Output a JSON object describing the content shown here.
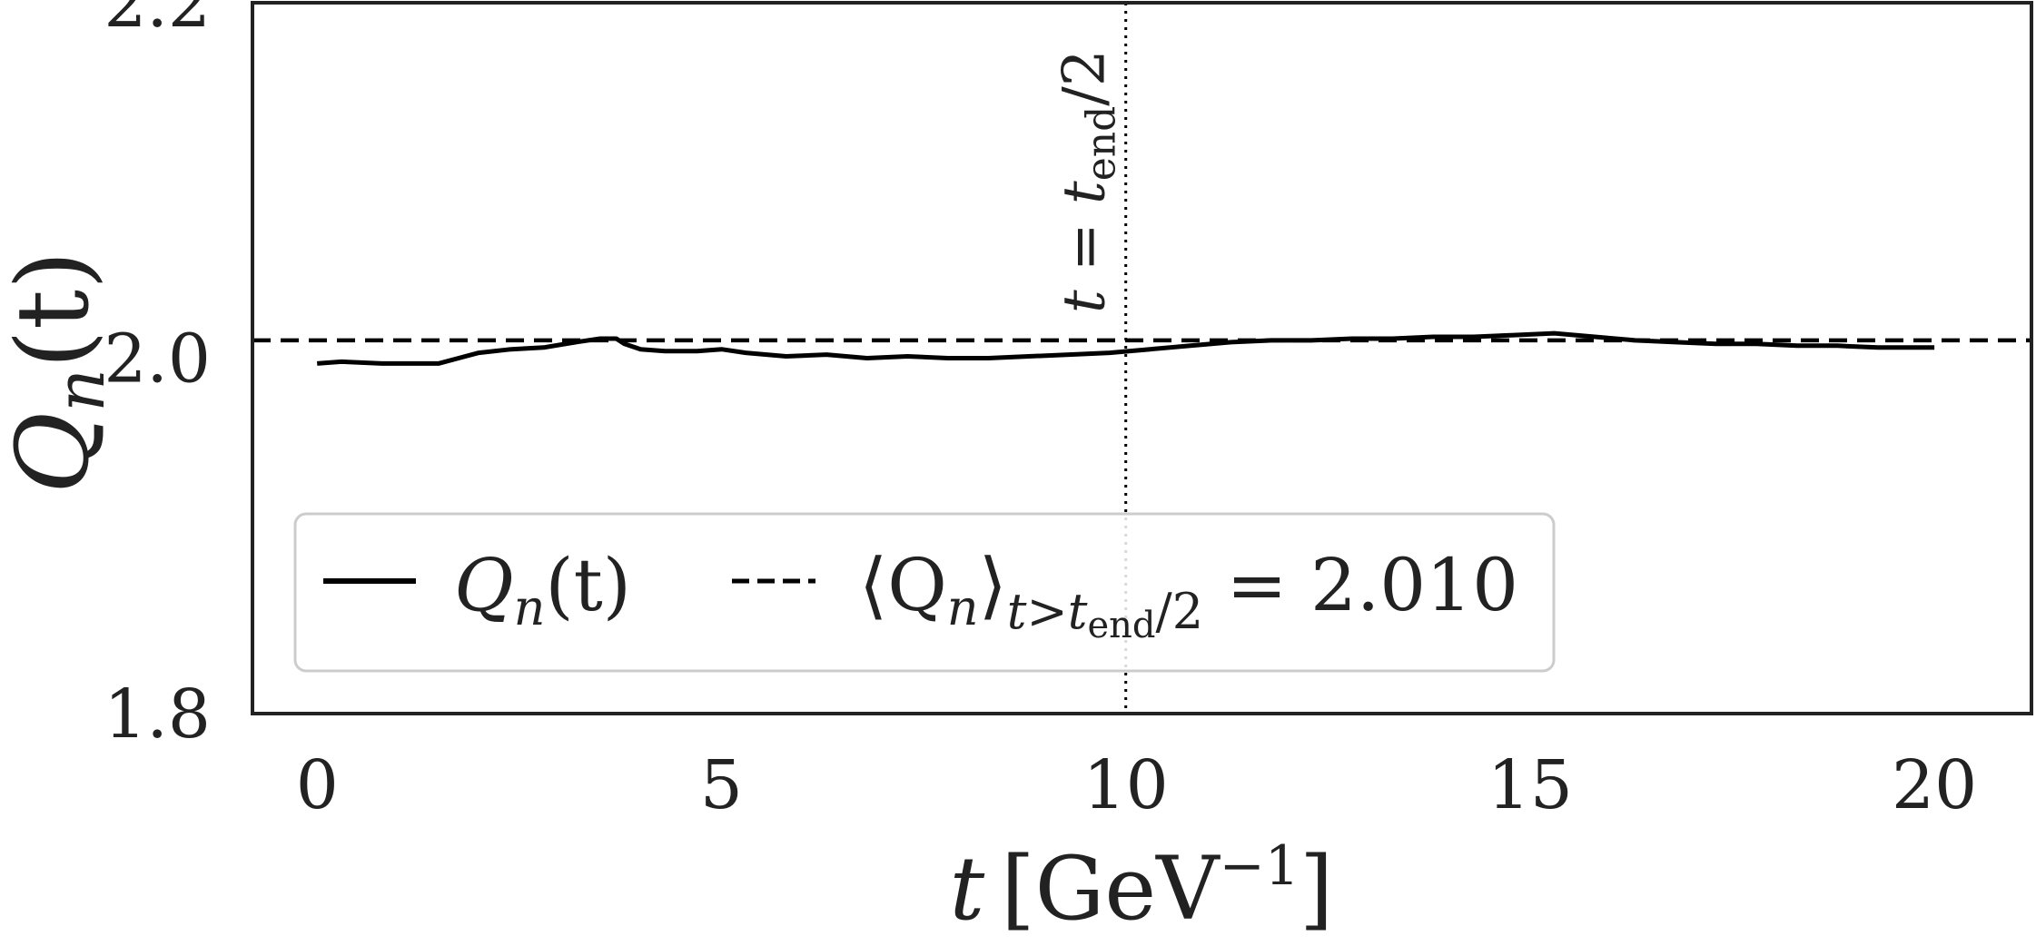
{
  "chart_data": {
    "type": "line",
    "xlabel": {
      "var": "t",
      "unit_open": "[GeV",
      "unit_exp": "−1",
      "unit_close": "]"
    },
    "ylabel": {
      "main": "Q",
      "sub": "n",
      "args": "(t)"
    },
    "xlim": [
      -0.8,
      21.2
    ],
    "ylim": [
      1.8,
      2.2
    ],
    "x_ticks": [
      0,
      5,
      10,
      15,
      20
    ],
    "x_tick_labels": [
      "0",
      "5",
      "10",
      "15",
      "20"
    ],
    "y_ticks": [
      1.8,
      2.0,
      2.2
    ],
    "y_tick_labels": [
      "1.8",
      "2.0",
      "2.2"
    ],
    "grid": false,
    "legend_position": "lower-left",
    "series": [
      {
        "name": "Qn(t)",
        "style": "solid",
        "color": "#000000",
        "x": [
          0,
          0.3,
          0.8,
          1.5,
          2.0,
          2.4,
          2.8,
          3.2,
          3.5,
          3.7,
          3.8,
          4.0,
          4.3,
          4.7,
          5.0,
          5.3,
          5.8,
          6.3,
          6.8,
          7.3,
          7.8,
          8.3,
          8.8,
          9.3,
          9.8,
          10.3,
          10.8,
          11.3,
          11.8,
          12.3,
          12.8,
          13.3,
          13.8,
          14.3,
          14.8,
          15.3,
          15.8,
          16.3,
          16.8,
          17.3,
          17.8,
          18.3,
          18.8,
          19.3,
          19.8,
          20.0
        ],
        "y": [
          1.997,
          1.998,
          1.997,
          1.997,
          2.003,
          2.005,
          2.006,
          2.009,
          2.011,
          2.011,
          2.008,
          2.005,
          2.004,
          2.004,
          2.005,
          2.003,
          2.001,
          2.002,
          2.0,
          2.001,
          2.0,
          2.0,
          2.001,
          2.002,
          2.003,
          2.005,
          2.007,
          2.009,
          2.01,
          2.01,
          2.011,
          2.011,
          2.012,
          2.012,
          2.013,
          2.014,
          2.012,
          2.01,
          2.009,
          2.008,
          2.008,
          2.007,
          2.007,
          2.006,
          2.006,
          2.006
        ]
      },
      {
        "name": "<Qn>t>tend/2 = 2.010",
        "style": "dashed",
        "color": "#000000",
        "y_constant": 2.01
      }
    ],
    "vline": {
      "x": 10.0,
      "style": "dotted",
      "label": "t = tend/2"
    },
    "legend": {
      "entries": [
        {
          "main": "Q",
          "sub": "n",
          "args": "(t)"
        },
        {
          "text": "⟨Q",
          "sub": "n",
          "close": "⟩",
          "cond_sub": "t>t",
          "cond_sub2": "end",
          "cond_tail": "/2",
          "value": " = 2.010"
        }
      ]
    },
    "vline_label": {
      "lhs": "t = t",
      "sub": "end",
      "rhs": "/2"
    }
  }
}
